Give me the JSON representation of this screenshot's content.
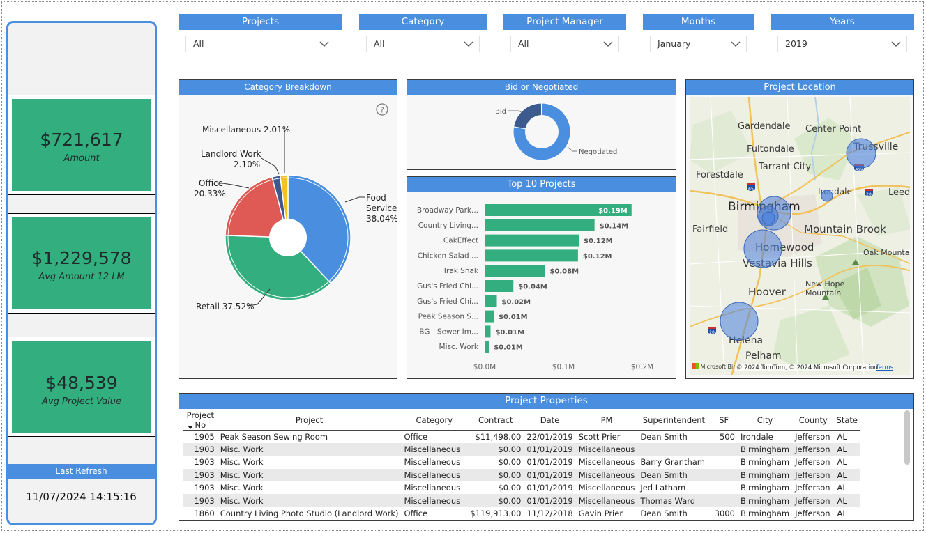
{
  "kpis": {
    "amount_value": "$721,617",
    "amount_label": "Amount",
    "avg12_value": "$1,229,578",
    "avg12_label": "Avg Amount 12 LM",
    "avgproj_value": "$48,539",
    "avgproj_label": "Avg Project Value"
  },
  "refresh": {
    "label": "Last Refresh",
    "time": "11/07/2024 14:15:16"
  },
  "slicers": [
    {
      "label": "Projects",
      "value": "All"
    },
    {
      "label": "Category",
      "value": "All"
    },
    {
      "label": "Project Manager",
      "value": "All"
    },
    {
      "label": "Months",
      "value": "January"
    },
    {
      "label": "Years",
      "value": "2019"
    }
  ],
  "colors": {
    "accent": "#4a8fdf",
    "kpi_green": "#33ae7e",
    "food": "#4a8fdf",
    "retail": "#33ae7e",
    "office": "#e05a55",
    "landlord": "#3d5a8f",
    "misc": "#f2c320",
    "bid": "#3d5a8f",
    "negotiated": "#4a8fdf",
    "bar": "#33ae7e",
    "bubble": "#4a80dd"
  },
  "category_chart": {
    "title": "Category Breakdown",
    "help_icon": "question-circle-icon",
    "chart_data": {
      "type": "pie",
      "slices": [
        {
          "name": "Food Service",
          "label_line1": "Food",
          "label_line2": "Service",
          "label_line3": "38.04%",
          "percent": 38.04,
          "color": "#4a8fdf"
        },
        {
          "name": "Retail",
          "label_line1": "Retail 37.52%",
          "percent": 37.52,
          "color": "#33ae7e"
        },
        {
          "name": "Office",
          "label_line1": "Office",
          "label_line2": "20.33%",
          "percent": 20.33,
          "color": "#e05a55"
        },
        {
          "name": "Landlord Work",
          "label_line1": "Landlord Work",
          "label_line2": "2.10%",
          "percent": 2.1,
          "color": "#3d5a8f"
        },
        {
          "name": "Miscellaneous",
          "label_line1": "Miscellaneous 2.01%",
          "percent": 2.01,
          "color": "#f2c320"
        }
      ]
    }
  },
  "bid_chart": {
    "title": "Bid or Negotiated",
    "chart_data": {
      "type": "pie",
      "slices": [
        {
          "name": "Bid",
          "label": "Bid",
          "percent": 22,
          "color": "#3d5a8f"
        },
        {
          "name": "Negotiated",
          "label": "Negotiated",
          "percent": 78,
          "color": "#4a8fdf"
        }
      ]
    }
  },
  "top10_chart": {
    "title": "Top 10 Projects",
    "chart_data": {
      "type": "bar",
      "orientation": "horizontal",
      "categories": [
        "Broadway Park...",
        "Country Living...",
        "CakEffect",
        "Chicken Salad ...",
        "Trak Shak",
        "Gus's Fried Chi...",
        "Gus's Fried Chi...",
        "Peak Season S...",
        "BG - Sewer Im...",
        "Misc. Work"
      ],
      "values": [
        0.19,
        0.14,
        0.12,
        0.12,
        0.08,
        0.04,
        0.02,
        0.01,
        0.01,
        0.01
      ],
      "bar_values": [
        0.1865,
        0.1395,
        0.1195,
        0.1185,
        0.0765,
        0.0365,
        0.0155,
        0.0115,
        0.0075,
        0.0055
      ],
      "data_labels": [
        "$0.19M",
        "$0.14M",
        "$0.12M",
        "$0.12M",
        "$0.08M",
        "$0.04M",
        "$0.02M",
        "$0.01M",
        "$0.01M",
        "$0.01M"
      ],
      "x_ticks": [
        "$0.0M",
        "$0.1M",
        "$0.2M"
      ],
      "xlim": [
        0,
        0.2
      ]
    }
  },
  "map": {
    "title": "Project Location",
    "places": [
      "Gardendale",
      "Center Point",
      "Fultondale",
      "Trussville",
      "Tarrant City",
      "Forestdale",
      "Irondale",
      "Leeds",
      "Birmingham",
      "Fairfield",
      "Mountain Brook",
      "Homewood",
      "Oak Mountain",
      "Vestavia Hills",
      "Hoover",
      "New Hope",
      "Mountain",
      "Helena",
      "Pelham"
    ],
    "roads": [
      "65",
      "459",
      "20",
      "20"
    ],
    "attribution": "© 2024 TomTom, © 2024 Microsoft Corporation",
    "terms": "Terms",
    "logo": "Microsoft Bing"
  },
  "table": {
    "title": "Project Properties",
    "columns": [
      "Project No",
      "Project",
      "Category",
      "Contract",
      "Date",
      "PM",
      "Superintendent",
      "SF",
      "City",
      "County",
      "State"
    ],
    "rows": [
      [
        "1905",
        "Peak Season Sewing Room",
        "Office",
        "$11,498.00",
        "22/01/2019",
        "Scott Prier",
        "Dean Smith",
        "500",
        "Irondale",
        "Jefferson",
        "AL"
      ],
      [
        "1903",
        "Misc. Work",
        "Miscellaneous",
        "$0.00",
        "01/01/2019",
        "Miscellaneous",
        "",
        "",
        "Birmingham",
        "Jefferson",
        "AL"
      ],
      [
        "1903",
        "Misc. Work",
        "Miscellaneous",
        "$0.00",
        "01/01/2019",
        "Miscellaneous",
        "Barry Grantham",
        "",
        "Birmingham",
        "Jefferson",
        "AL"
      ],
      [
        "1903",
        "Misc. Work",
        "Miscellaneous",
        "$0.00",
        "01/01/2019",
        "Miscellaneous",
        "Dean Smith",
        "",
        "Birmingham",
        "Jefferson",
        "AL"
      ],
      [
        "1903",
        "Misc. Work",
        "Miscellaneous",
        "$0.00",
        "01/01/2019",
        "Miscellaneous",
        "Jed Latham",
        "",
        "Birmingham",
        "Jefferson",
        "AL"
      ],
      [
        "1903",
        "Misc. Work",
        "Miscellaneous",
        "$0.00",
        "01/01/2019",
        "Miscellaneous",
        "Thomas Ward",
        "",
        "Birmingham",
        "Jefferson",
        "AL"
      ],
      [
        "1860",
        "Country Living Photo Studio (Landlord Work)",
        "Office",
        "$119,913.00",
        "11/12/2018",
        "Gavin Prier",
        "Dean Smith",
        "3000",
        "Birmingham",
        "Jefferson",
        "AL"
      ]
    ]
  }
}
